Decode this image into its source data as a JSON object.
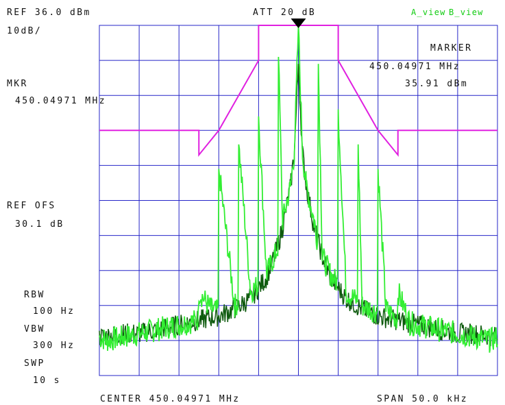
{
  "header": {
    "ref_level": "REF 36.0 dBm",
    "scale": "10dB/",
    "attenuation": "ATT 20 dB",
    "view_a": "A_view",
    "view_b": "B_view"
  },
  "marker_readout": {
    "title": "MARKER",
    "frequency": "450.04971 MHz",
    "level": "35.91 dBm"
  },
  "left_panel": {
    "mkr_label": "MKR",
    "mkr_value": "450.04971 MHz",
    "ref_ofs_label": "REF OFS",
    "ref_ofs_value": "30.1 dB",
    "rbw_label": "RBW",
    "rbw_value": "100 Hz",
    "vbw_label": "VBW",
    "vbw_value": "300 Hz",
    "swp_label": "SWP",
    "swp_value": "10 s"
  },
  "footer": {
    "center": "CENTER 450.04971 MHz",
    "span": "SPAN 50.0 kHz"
  },
  "colors": {
    "grid": "#2525c8",
    "mask": "#e020e0",
    "trace_a": "#33ee33",
    "trace_b": "#0e5a0e",
    "view_label": "#11cc11",
    "marker": "#000000"
  },
  "chart_data": {
    "type": "line",
    "x_unit": "kHz offset from center",
    "y_unit": "dBm",
    "xlim": [
      -25,
      25
    ],
    "ylim": [
      -64,
      36
    ],
    "grid": true,
    "marker": {
      "x": 0,
      "y": 35.91
    },
    "mask": {
      "name": "",
      "x": [
        -25,
        -12.5,
        -12.5,
        -10,
        -5,
        -5,
        5,
        5,
        10,
        12.5,
        12.5,
        25
      ],
      "y": [
        6,
        6,
        -1,
        6,
        26,
        36,
        36,
        26,
        6,
        -1,
        6,
        6
      ]
    },
    "series": [
      {
        "name": "",
        "x": [
          -25,
          -24,
          -22,
          -20,
          -18,
          -16,
          -14,
          -12.5,
          -12.5,
          -11,
          -10,
          -10,
          -8,
          -7.5,
          -7.5,
          -6,
          -5,
          -5,
          -4,
          -3,
          -2.5,
          -2.5,
          -2,
          -1,
          -0.5,
          0,
          0.5,
          1,
          2,
          2.5,
          2.5,
          3,
          4,
          5,
          5,
          6,
          7.5,
          7.5,
          8,
          10,
          10,
          11,
          12.5,
          12.5,
          14,
          16,
          18,
          20,
          22,
          24,
          25
        ],
        "y": [
          -53,
          -54,
          -53,
          -52,
          -51,
          -50,
          -49,
          -48,
          -40,
          -45,
          -46,
          -5,
          -44,
          -43,
          2,
          -40,
          -38,
          10,
          -35,
          -30,
          -27,
          27,
          -20,
          -10,
          0,
          35.91,
          0,
          -10,
          -20,
          -27,
          25,
          -30,
          -35,
          -38,
          12,
          -40,
          -43,
          2,
          -44,
          -46,
          -5,
          -45,
          -48,
          -40,
          -49,
          -50,
          -51,
          -52,
          -53,
          -54,
          -53
        ]
      },
      {
        "name": "",
        "x": [
          -25,
          -22,
          -20,
          -18,
          -16,
          -14,
          -12,
          -10,
          -8,
          -6,
          -4,
          -3,
          -2,
          -1,
          -0.5,
          0,
          0.5,
          1,
          2,
          3,
          4,
          6,
          8,
          10,
          12,
          14,
          16,
          18,
          20,
          22,
          25
        ],
        "y": [
          -53,
          -52,
          -52,
          -51,
          -50,
          -49,
          -48,
          -47,
          -45,
          -42,
          -36,
          -30,
          -22,
          -10,
          0,
          25,
          0,
          -10,
          -22,
          -30,
          -36,
          -42,
          -45,
          -47,
          -48,
          -49,
          -50,
          -51,
          -52,
          -52,
          -53
        ]
      }
    ]
  }
}
